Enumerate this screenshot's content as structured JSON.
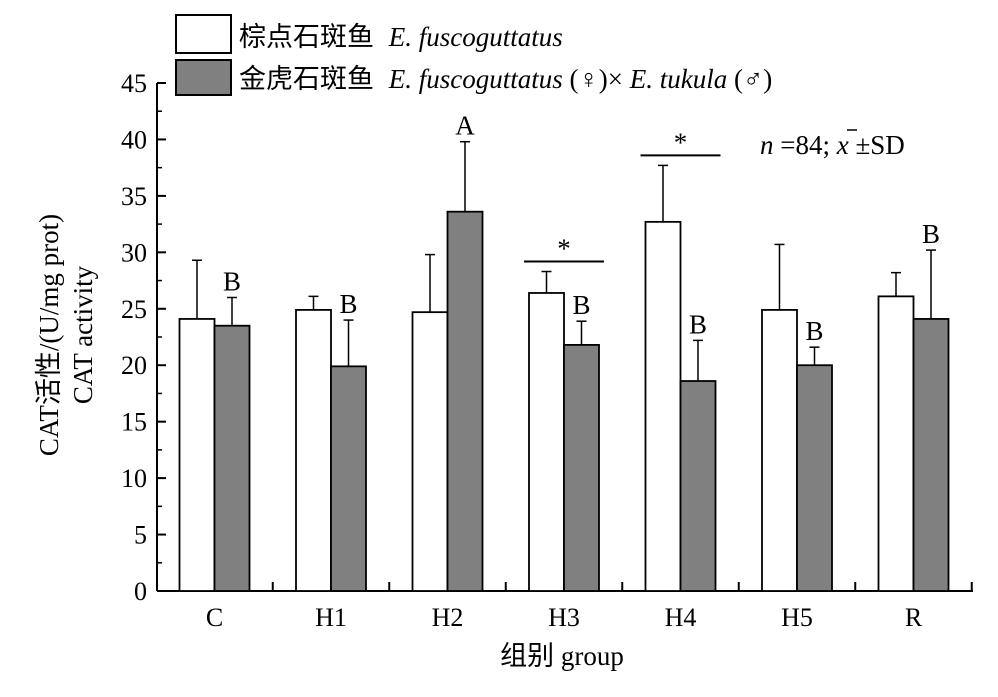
{
  "chart_data": {
    "type": "bar",
    "categories": [
      "C",
      "H1",
      "H2",
      "H3",
      "H4",
      "H5",
      "R"
    ],
    "series": [
      {
        "name": "棕点石斑鱼 E. fuscoguttatus",
        "legend_cn": "棕点石斑鱼",
        "legend_latin": "E. fuscoguttatus",
        "color": "#ffffff",
        "values": [
          24.1,
          24.9,
          24.7,
          26.4,
          32.7,
          24.9,
          26.1
        ],
        "errors": [
          5.2,
          1.2,
          5.1,
          1.9,
          5.0,
          5.8,
          2.1
        ],
        "labels": [
          "",
          "",
          "",
          "",
          "",
          "",
          ""
        ]
      },
      {
        "name": "金虎石斑鱼 E. fuscoguttatus(♀)×E. tukula(♂)",
        "legend_cn": "金虎石斑鱼",
        "legend_latin1": "E. fuscoguttatus",
        "legend_mid": "(♀)×",
        "legend_latin2": "E. tukula",
        "legend_end": "(♂)",
        "color": "#808080",
        "values": [
          23.5,
          19.9,
          33.6,
          21.8,
          18.6,
          20.0,
          24.1
        ],
        "errors": [
          2.5,
          4.1,
          6.2,
          2.1,
          3.6,
          1.6,
          6.1
        ],
        "labels": [
          "B",
          "B",
          "A",
          "B",
          "B",
          "B",
          "B"
        ]
      }
    ],
    "significance": [
      {
        "category": "H3",
        "label": "*"
      },
      {
        "category": "H4",
        "label": "*"
      }
    ],
    "ylim": [
      0,
      45
    ],
    "yticks": [
      0,
      5,
      10,
      15,
      20,
      25,
      30,
      35,
      40,
      45
    ],
    "ylabel_line1": "CAT活性/(U/mg prot)",
    "ylabel_line2": "CAT activity",
    "xlabel": "组别 group",
    "stat_note": {
      "n_label": "n",
      "n_value": "=84; ",
      "mean_symbol": "x",
      "pm": "±SD"
    },
    "grid": false,
    "legend_position": "top-left"
  }
}
